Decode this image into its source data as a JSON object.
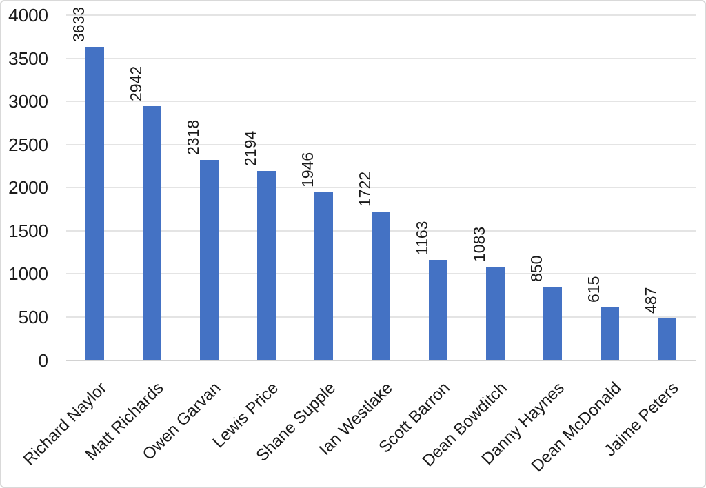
{
  "chart_data": {
    "type": "bar",
    "title": "",
    "xlabel": "",
    "ylabel": "",
    "categories": [
      "Richard Naylor",
      "Matt Richards",
      "Owen Garvan",
      "Lewis Price",
      "Shane Supple",
      "Ian Westlake",
      "Scott Barron",
      "Dean Bowditch",
      "Danny Haynes",
      "Dean McDonald",
      "Jaime Peters"
    ],
    "values": [
      3633,
      2942,
      2318,
      2194,
      1946,
      1722,
      1163,
      1083,
      850,
      615,
      487
    ],
    "data_labels": [
      "3633",
      "2942",
      "2318",
      "2194",
      "1946",
      "1722",
      "1163",
      "1083",
      "850",
      "615",
      "487"
    ],
    "ylim": [
      0,
      4000
    ],
    "yticks": [
      0,
      500,
      1000,
      1500,
      2000,
      2500,
      3000,
      3500,
      4000
    ],
    "grid": true,
    "legend": false,
    "bar_color": "#4472C4",
    "gridline_color": "#E4E4E4",
    "axis_line_color": "#D2D2D2",
    "text_color": "#1A1A1A",
    "border_color": "#D9D9D9",
    "background_color": "#FFFFFF",
    "data_label_rotation_deg": -90,
    "category_label_rotation_deg": -45
  }
}
